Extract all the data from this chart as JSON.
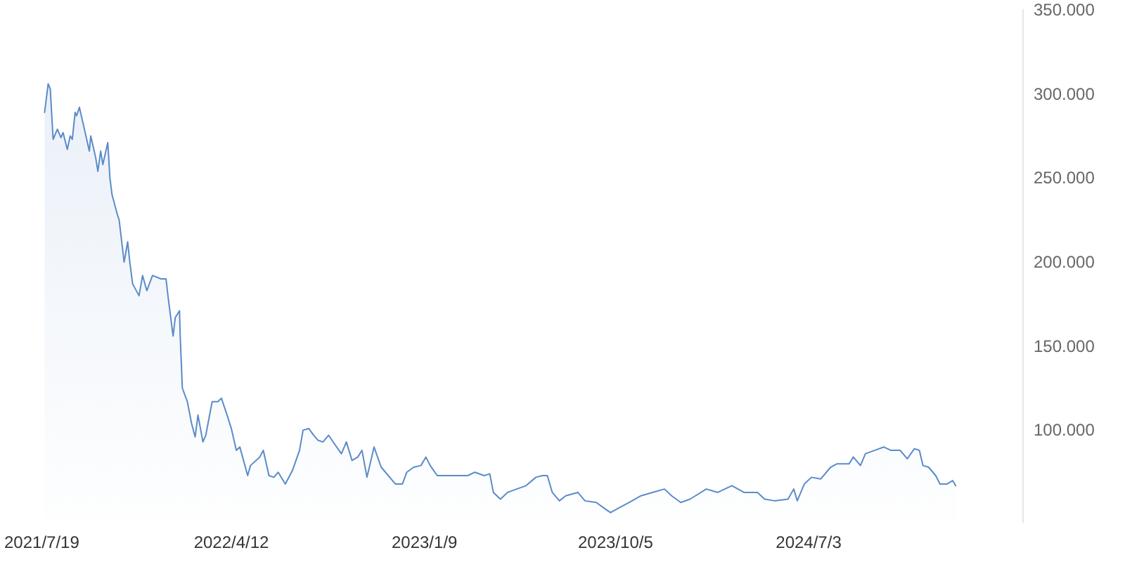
{
  "chart_data": {
    "type": "area",
    "color": "#5b8bc9",
    "grid": false,
    "marker": "none",
    "line_style": "solid",
    "x": [
      "2021-07-23",
      "2021-07-28",
      "2021-07-31",
      "2021-08-04",
      "2021-08-10",
      "2021-08-15",
      "2021-08-18",
      "2021-08-24",
      "2021-08-28",
      "2021-08-31",
      "2021-09-04",
      "2021-09-06",
      "2021-09-10",
      "2021-09-16",
      "2021-09-24",
      "2021-09-26",
      "2021-10-03",
      "2021-10-06",
      "2021-10-10",
      "2021-10-13",
      "2021-10-20",
      "2021-10-23",
      "2021-10-26",
      "2021-11-02",
      "2021-11-05",
      "2021-11-12",
      "2021-11-17",
      "2021-11-20",
      "2021-11-24",
      "2021-12-03",
      "2021-12-08",
      "2021-12-14",
      "2021-12-22",
      "2022-01-03",
      "2022-01-10",
      "2022-01-13",
      "2022-01-20",
      "2022-01-23",
      "2022-01-29",
      "2022-01-30",
      "2022-02-02",
      "2022-02-09",
      "2022-02-15",
      "2022-02-20",
      "2022-02-24",
      "2022-03-03",
      "2022-03-07",
      "2022-03-16",
      "2022-03-24",
      "2022-03-29",
      "2022-04-06",
      "2022-04-12",
      "2022-04-19",
      "2022-04-24",
      "2022-05-05",
      "2022-05-09",
      "2022-05-22",
      "2022-05-27",
      "2022-06-04",
      "2022-06-11",
      "2022-06-17",
      "2022-06-27",
      "2022-07-07",
      "2022-07-17",
      "2022-07-22",
      "2022-07-30",
      "2022-08-06",
      "2022-08-12",
      "2022-08-19",
      "2022-08-27",
      "2022-09-04",
      "2022-09-14",
      "2022-09-21",
      "2022-09-29",
      "2022-10-07",
      "2022-10-13",
      "2022-10-20",
      "2022-10-30",
      "2022-11-09",
      "2022-11-19",
      "2022-11-29",
      "2022-12-09",
      "2022-12-15",
      "2022-12-25",
      "2023-01-04",
      "2023-01-11",
      "2023-01-17",
      "2023-01-27",
      "2023-02-16",
      "2023-03-11",
      "2023-03-21",
      "2023-04-03",
      "2023-04-11",
      "2023-04-16",
      "2023-04-26",
      "2023-05-06",
      "2023-05-19",
      "2023-06-01",
      "2023-06-15",
      "2023-06-24",
      "2023-07-01",
      "2023-07-08",
      "2023-07-18",
      "2023-07-27",
      "2023-08-13",
      "2023-08-23",
      "2023-09-08",
      "2023-09-21",
      "2023-09-28",
      "2023-10-11",
      "2023-10-24",
      "2023-11-10",
      "2023-11-26",
      "2023-12-13",
      "2023-12-23",
      "2024-01-05",
      "2024-01-18",
      "2024-02-10",
      "2024-02-26",
      "2024-03-17",
      "2024-04-03",
      "2024-04-22",
      "2024-05-02",
      "2024-05-16",
      "2024-06-04",
      "2024-06-12",
      "2024-06-17",
      "2024-06-27",
      "2024-07-07",
      "2024-07-20",
      "2024-08-03",
      "2024-08-12",
      "2024-08-29",
      "2024-09-04",
      "2024-09-14",
      "2024-09-21",
      "2024-10-04",
      "2024-10-17",
      "2024-10-27",
      "2024-11-09",
      "2024-11-19",
      "2024-11-29",
      "2024-12-06",
      "2024-12-11",
      "2024-12-19",
      "2024-12-29",
      "2025-01-04",
      "2025-01-14",
      "2025-01-22",
      "2025-01-26"
    ],
    "values": [
      289,
      306,
      303,
      273,
      279,
      274,
      277,
      267,
      275,
      273,
      289,
      287,
      292,
      281,
      266,
      275,
      262,
      254,
      266,
      258,
      271,
      250,
      240,
      229,
      225,
      200,
      212,
      200,
      187,
      180,
      192,
      183,
      192,
      190,
      190,
      179,
      156,
      167,
      171,
      156,
      125,
      117,
      104,
      96,
      109,
      93,
      97,
      117,
      117,
      119,
      109,
      101,
      88,
      90,
      73,
      79,
      84,
      88,
      73,
      72,
      75,
      68,
      76,
      88,
      100,
      101,
      97,
      94,
      93,
      97,
      92,
      86,
      93,
      82,
      84,
      88,
      72,
      90,
      78,
      73,
      68,
      68,
      75,
      78,
      79,
      84,
      79,
      73,
      73,
      73,
      75,
      73,
      74,
      63,
      59,
      63,
      65,
      67,
      72,
      73,
      73,
      63,
      58,
      61,
      63,
      58,
      57,
      53,
      51,
      54,
      57,
      61,
      63,
      65,
      61,
      57,
      59,
      65,
      63,
      67,
      63,
      63,
      59,
      58,
      59,
      65,
      58,
      68,
      72,
      71,
      78,
      80,
      80,
      84,
      79,
      86,
      88,
      90,
      88,
      88,
      83,
      89,
      88,
      79,
      78,
      73,
      68,
      68,
      70,
      67
    ],
    "xlim": [
      "2021-07-19",
      "2025-04-30"
    ],
    "xticks": [
      {
        "value": "2021-07-19",
        "label": "2021/7/19"
      },
      {
        "value": "2022-04-12",
        "label": "2022/4/12"
      },
      {
        "value": "2023-01-09",
        "label": "2023/1/9"
      },
      {
        "value": "2023-10-05",
        "label": "2023/10/5"
      },
      {
        "value": "2024-07-03",
        "label": "2024/7/3"
      }
    ],
    "ylim": [
      45,
      350
    ],
    "yticks": [
      {
        "value": 100,
        "label": "100.000"
      },
      {
        "value": 150,
        "label": "150.000"
      },
      {
        "value": 200,
        "label": "200.000"
      },
      {
        "value": 250,
        "label": "250.000"
      },
      {
        "value": 300,
        "label": "300.000"
      },
      {
        "value": 350,
        "label": "350.000"
      }
    ]
  }
}
